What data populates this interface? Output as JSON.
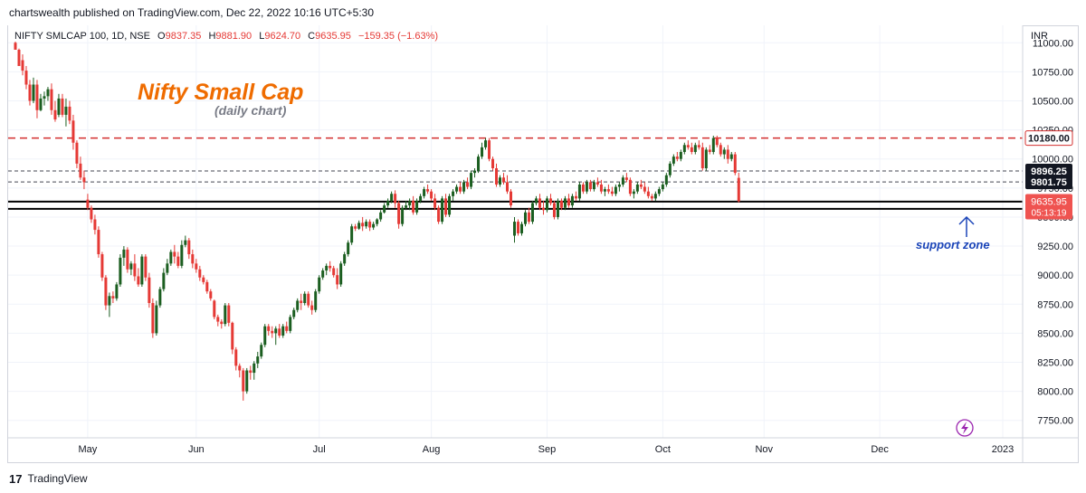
{
  "header": {
    "published": "chartswealth published on TradingView.com, Dec 22, 2022 10:16 UTC+5:30"
  },
  "legend": {
    "symbol": "NIFTY SMLCAP 100, 1D, NSE",
    "o_label": "O",
    "o_value": "9837.35",
    "h_label": "H",
    "h_value": "9881.90",
    "l_label": "L",
    "l_value": "9624.70",
    "c_label": "C",
    "c_value": "9635.95",
    "change": "−159.35 (−1.63%)"
  },
  "annotations": {
    "title": "Nifty Small Cap",
    "subtitle": "(daily chart)",
    "support": "support zone"
  },
  "footer": {
    "brand": "TradingView",
    "logo": "17"
  },
  "colors": {
    "up": "#1b5e20",
    "down": "#e53935",
    "resistance": "#d32f2f",
    "title": "#ef6c00",
    "support_text": "#1a44b8",
    "price_tag": "#ef5350"
  },
  "chart_data": {
    "type": "candlestick",
    "currency": "INR",
    "ylim": [
      7600,
      11150
    ],
    "y_ticks": [
      7750,
      8000,
      8250,
      8500,
      8750,
      9000,
      9250,
      9500,
      9750,
      10000,
      10250,
      10500,
      10750,
      11000
    ],
    "y_tick_labels": [
      "7750.00",
      "8000.00",
      "8250.00",
      "8500.00",
      "8750.00",
      "9000.00",
      "9250.00",
      "9500.00",
      "9750.00",
      "10000.00",
      "10250.00",
      "10500.00",
      "10750.00",
      "11000.00"
    ],
    "x_ticks": [
      {
        "label": "May",
        "index": 20
      },
      {
        "label": "Jun",
        "index": 50
      },
      {
        "label": "Jul",
        "index": 84
      },
      {
        "label": "Aug",
        "index": 115
      },
      {
        "label": "Sep",
        "index": 147
      },
      {
        "label": "Oct",
        "index": 179
      },
      {
        "label": "Nov",
        "index": 207
      },
      {
        "label": "Dec",
        "index": 239
      },
      {
        "label": "2023",
        "index": 273
      }
    ],
    "x_range": [
      -2,
      278
    ],
    "levels": [
      {
        "value": 10180.0,
        "label": "10180.00",
        "style": "resistance"
      },
      {
        "value": 9896.25,
        "label": "9896.25",
        "style": "dashed"
      },
      {
        "value": 9801.75,
        "label": "9801.75",
        "style": "dashed"
      },
      {
        "value": 9632.55,
        "label": "9632.55",
        "style": "solid"
      },
      {
        "value": 9570.7,
        "label": "9570.70",
        "style": "solid"
      }
    ],
    "last_price": {
      "value": 9635.95,
      "label": "9635.95",
      "countdown": "05:13:19"
    },
    "candles": [
      [
        11000,
        11010,
        10950,
        10940
      ],
      [
        10940,
        10950,
        10820,
        10800
      ],
      [
        10850,
        10900,
        10720,
        10760
      ],
      [
        10760,
        10800,
        10600,
        10640
      ],
      [
        10640,
        10680,
        10460,
        10500
      ],
      [
        10500,
        10700,
        10480,
        10640
      ],
      [
        10640,
        10680,
        10350,
        10420
      ],
      [
        10420,
        10560,
        10410,
        10520
      ],
      [
        10520,
        10580,
        10460,
        10540
      ],
      [
        10540,
        10620,
        10500,
        10600
      ],
      [
        10600,
        10650,
        10380,
        10420
      ],
      [
        10420,
        10500,
        10320,
        10340
      ],
      [
        10380,
        10560,
        10360,
        10520
      ],
      [
        10520,
        10560,
        10360,
        10380
      ],
      [
        10380,
        10520,
        10280,
        10450
      ],
      [
        10450,
        10500,
        10300,
        10330
      ],
      [
        10330,
        10380,
        10080,
        10140
      ],
      [
        10140,
        10160,
        9920,
        9960
      ],
      [
        9960,
        10020,
        9820,
        9840
      ],
      [
        9840,
        9900,
        9740,
        9800
      ],
      [
        9650,
        9700,
        9560,
        9580
      ],
      [
        9580,
        9600,
        9450,
        9480
      ],
      [
        9480,
        9520,
        9350,
        9390
      ],
      [
        9390,
        9420,
        9150,
        9180
      ],
      [
        9180,
        9200,
        8950,
        8980
      ],
      [
        8980,
        9000,
        8700,
        8740
      ],
      [
        8740,
        8850,
        8640,
        8820
      ],
      [
        8820,
        8860,
        8760,
        8800
      ],
      [
        8800,
        8940,
        8780,
        8920
      ],
      [
        8920,
        9180,
        8900,
        9150
      ],
      [
        9150,
        9250,
        9080,
        9220
      ],
      [
        9220,
        9240,
        9020,
        9050
      ],
      [
        9050,
        9120,
        9000,
        9100
      ],
      [
        9100,
        9180,
        8950,
        8990
      ],
      [
        8990,
        9060,
        8900,
        8920
      ],
      [
        8920,
        9180,
        8900,
        9160
      ],
      [
        9160,
        9180,
        8950,
        8980
      ],
      [
        8980,
        9020,
        8720,
        8760
      ],
      [
        8760,
        8800,
        8460,
        8500
      ],
      [
        8500,
        8780,
        8480,
        8740
      ],
      [
        8740,
        8900,
        8720,
        8880
      ],
      [
        8880,
        9060,
        8860,
        9020
      ],
      [
        9020,
        9140,
        9000,
        9100
      ],
      [
        9100,
        9220,
        9080,
        9200
      ],
      [
        9200,
        9260,
        9100,
        9160
      ],
      [
        9160,
        9200,
        9060,
        9080
      ],
      [
        9080,
        9300,
        9060,
        9260
      ],
      [
        9260,
        9340,
        9240,
        9300
      ],
      [
        9300,
        9320,
        9140,
        9180
      ],
      [
        9180,
        9220,
        9060,
        9100
      ],
      [
        9100,
        9140,
        9020,
        9050
      ],
      [
        9050,
        9080,
        8950,
        8980
      ],
      [
        8980,
        9000,
        8920,
        8940
      ],
      [
        8940,
        8960,
        8840,
        8860
      ],
      [
        8860,
        8880,
        8780,
        8800
      ],
      [
        8780,
        8790,
        8620,
        8640
      ],
      [
        8640,
        8660,
        8560,
        8600
      ],
      [
        8600,
        8620,
        8540,
        8580
      ],
      [
        8580,
        8760,
        8560,
        8740
      ],
      [
        8740,
        8760,
        8560,
        8590
      ],
      [
        8590,
        8600,
        8320,
        8360
      ],
      [
        8360,
        8380,
        8180,
        8220
      ],
      [
        8220,
        8240,
        8120,
        8180
      ],
      [
        8180,
        8200,
        7920,
        8000
      ],
      [
        8000,
        8200,
        7980,
        8180
      ],
      [
        8180,
        8220,
        8100,
        8160
      ],
      [
        8160,
        8260,
        8100,
        8240
      ],
      [
        8240,
        8340,
        8200,
        8300
      ],
      [
        8300,
        8420,
        8280,
        8400
      ],
      [
        8400,
        8580,
        8380,
        8560
      ],
      [
        8560,
        8580,
        8480,
        8520
      ],
      [
        8520,
        8560,
        8460,
        8500
      ],
      [
        8500,
        8560,
        8400,
        8540
      ],
      [
        8540,
        8580,
        8460,
        8480
      ],
      [
        8480,
        8580,
        8460,
        8560
      ],
      [
        8560,
        8600,
        8500,
        8520
      ],
      [
        8520,
        8660,
        8500,
        8640
      ],
      [
        8640,
        8720,
        8620,
        8700
      ],
      [
        8700,
        8800,
        8680,
        8780
      ],
      [
        8780,
        8840,
        8700,
        8760
      ],
      [
        8760,
        8860,
        8740,
        8840
      ],
      [
        8840,
        8860,
        8720,
        8740
      ],
      [
        8740,
        8780,
        8660,
        8700
      ],
      [
        8700,
        8880,
        8680,
        8860
      ],
      [
        8860,
        9000,
        8840,
        8980
      ],
      [
        8980,
        9060,
        8960,
        9040
      ],
      [
        9040,
        9100,
        9000,
        9080
      ],
      [
        9080,
        9120,
        9030,
        9060
      ],
      [
        9060,
        9080,
        8980,
        9000
      ],
      [
        9000,
        9060,
        8880,
        8920
      ],
      [
        8920,
        9120,
        8900,
        9100
      ],
      [
        9100,
        9200,
        9080,
        9180
      ],
      [
        9180,
        9300,
        9160,
        9280
      ],
      [
        9280,
        9440,
        9260,
        9420
      ],
      [
        9420,
        9440,
        9380,
        9400
      ],
      [
        9400,
        9470,
        9390,
        9450
      ],
      [
        9450,
        9500,
        9380,
        9420
      ],
      [
        9420,
        9480,
        9400,
        9460
      ],
      [
        9460,
        9480,
        9380,
        9410
      ],
      [
        9410,
        9460,
        9390,
        9440
      ],
      [
        9440,
        9490,
        9420,
        9480
      ],
      [
        9480,
        9560,
        9460,
        9540
      ],
      [
        9540,
        9620,
        9530,
        9600
      ],
      [
        9600,
        9660,
        9580,
        9640
      ],
      [
        9640,
        9720,
        9620,
        9700
      ],
      [
        9700,
        9730,
        9580,
        9620
      ],
      [
        9620,
        9640,
        9400,
        9440
      ],
      [
        9440,
        9600,
        9420,
        9580
      ],
      [
        9580,
        9640,
        9560,
        9600
      ],
      [
        9600,
        9660,
        9560,
        9640
      ],
      [
        9640,
        9680,
        9520,
        9540
      ],
      [
        9540,
        9660,
        9520,
        9640
      ],
      [
        9640,
        9700,
        9620,
        9680
      ],
      [
        9680,
        9760,
        9660,
        9740
      ],
      [
        9740,
        9780,
        9700,
        9720
      ],
      [
        9720,
        9740,
        9640,
        9660
      ],
      [
        9660,
        9700,
        9560,
        9580
      ],
      [
        9580,
        9600,
        9440,
        9460
      ],
      [
        9460,
        9680,
        9440,
        9660
      ],
      [
        9660,
        9700,
        9500,
        9520
      ],
      [
        9520,
        9700,
        9500,
        9680
      ],
      [
        9680,
        9740,
        9640,
        9720
      ],
      [
        9720,
        9780,
        9700,
        9760
      ],
      [
        9760,
        9800,
        9700,
        9720
      ],
      [
        9720,
        9820,
        9700,
        9800
      ],
      [
        9800,
        9840,
        9740,
        9760
      ],
      [
        9760,
        9900,
        9740,
        9880
      ],
      [
        9880,
        9920,
        9840,
        9900
      ],
      [
        9900,
        10040,
        9880,
        10020
      ],
      [
        10020,
        10140,
        10000,
        10100
      ],
      [
        10100,
        10180,
        10080,
        10160
      ],
      [
        10160,
        10180,
        9980,
        10000
      ],
      [
        10000,
        10020,
        9900,
        9920
      ],
      [
        9920,
        9960,
        9760,
        9780
      ],
      [
        9780,
        9860,
        9760,
        9840
      ],
      [
        9840,
        9880,
        9780,
        9800
      ],
      [
        9800,
        9860,
        9700,
        9720
      ],
      [
        9720,
        9740,
        9580,
        9600
      ],
      [
        9340,
        9500,
        9280,
        9460
      ],
      [
        9460,
        9480,
        9340,
        9360
      ],
      [
        9360,
        9460,
        9340,
        9440
      ],
      [
        9440,
        9560,
        9420,
        9540
      ],
      [
        9540,
        9580,
        9440,
        9460
      ],
      [
        9460,
        9640,
        9440,
        9620
      ],
      [
        9620,
        9680,
        9600,
        9660
      ],
      [
        9660,
        9700,
        9560,
        9580
      ],
      [
        9580,
        9640,
        9520,
        9560
      ],
      [
        9560,
        9680,
        9540,
        9660
      ],
      [
        9660,
        9700,
        9600,
        9620
      ],
      [
        9620,
        9640,
        9480,
        9500
      ],
      [
        9500,
        9660,
        9480,
        9640
      ],
      [
        9640,
        9660,
        9560,
        9580
      ],
      [
        9580,
        9680,
        9560,
        9660
      ],
      [
        9660,
        9700,
        9580,
        9600
      ],
      [
        9600,
        9700,
        9580,
        9680
      ],
      [
        9680,
        9720,
        9640,
        9660
      ],
      [
        9660,
        9800,
        9640,
        9780
      ],
      [
        9780,
        9800,
        9700,
        9720
      ],
      [
        9720,
        9820,
        9700,
        9800
      ],
      [
        9800,
        9820,
        9720,
        9740
      ],
      [
        9740,
        9820,
        9720,
        9800
      ],
      [
        9800,
        9840,
        9760,
        9780
      ],
      [
        9780,
        9820,
        9700,
        9720
      ],
      [
        9720,
        9760,
        9680,
        9740
      ],
      [
        9740,
        9780,
        9700,
        9720
      ],
      [
        9720,
        9760,
        9680,
        9700
      ],
      [
        9700,
        9780,
        9680,
        9760
      ],
      [
        9760,
        9800,
        9720,
        9780
      ],
      [
        9780,
        9860,
        9760,
        9840
      ],
      [
        9840,
        9880,
        9800,
        9820
      ],
      [
        9820,
        9840,
        9680,
        9700
      ],
      [
        9700,
        9740,
        9660,
        9720
      ],
      [
        9720,
        9800,
        9700,
        9780
      ],
      [
        9780,
        9820,
        9740,
        9760
      ],
      [
        9760,
        9800,
        9700,
        9720
      ],
      [
        9720,
        9760,
        9660,
        9680
      ],
      [
        9680,
        9700,
        9640,
        9660
      ],
      [
        9660,
        9720,
        9640,
        9700
      ],
      [
        9700,
        9760,
        9680,
        9740
      ],
      [
        9740,
        9800,
        9720,
        9780
      ],
      [
        9780,
        9880,
        9760,
        9860
      ],
      [
        9860,
        9980,
        9840,
        9960
      ],
      [
        9960,
        10040,
        9940,
        10020
      ],
      [
        10020,
        10060,
        9980,
        10000
      ],
      [
        10000,
        10080,
        9980,
        10060
      ],
      [
        10060,
        10140,
        10040,
        10120
      ],
      [
        10120,
        10160,
        10080,
        10100
      ],
      [
        10100,
        10140,
        10040,
        10060
      ],
      [
        10060,
        10140,
        10040,
        10120
      ],
      [
        10120,
        10160,
        10080,
        10100
      ],
      [
        10100,
        10140,
        9900,
        9920
      ],
      [
        9920,
        10100,
        9900,
        10080
      ],
      [
        10080,
        10120,
        10040,
        10060
      ],
      [
        10060,
        10200,
        10040,
        10180
      ],
      [
        10180,
        10200,
        10100,
        10120
      ],
      [
        10120,
        10140,
        10020,
        10040
      ],
      [
        10040,
        10100,
        10000,
        10080
      ],
      [
        10080,
        10120,
        9960,
        10000
      ],
      [
        10000,
        10060,
        9980,
        10040
      ],
      [
        10040,
        10060,
        9860,
        9880
      ],
      [
        9837.35,
        9881.9,
        9624.7,
        9635.95
      ]
    ]
  }
}
